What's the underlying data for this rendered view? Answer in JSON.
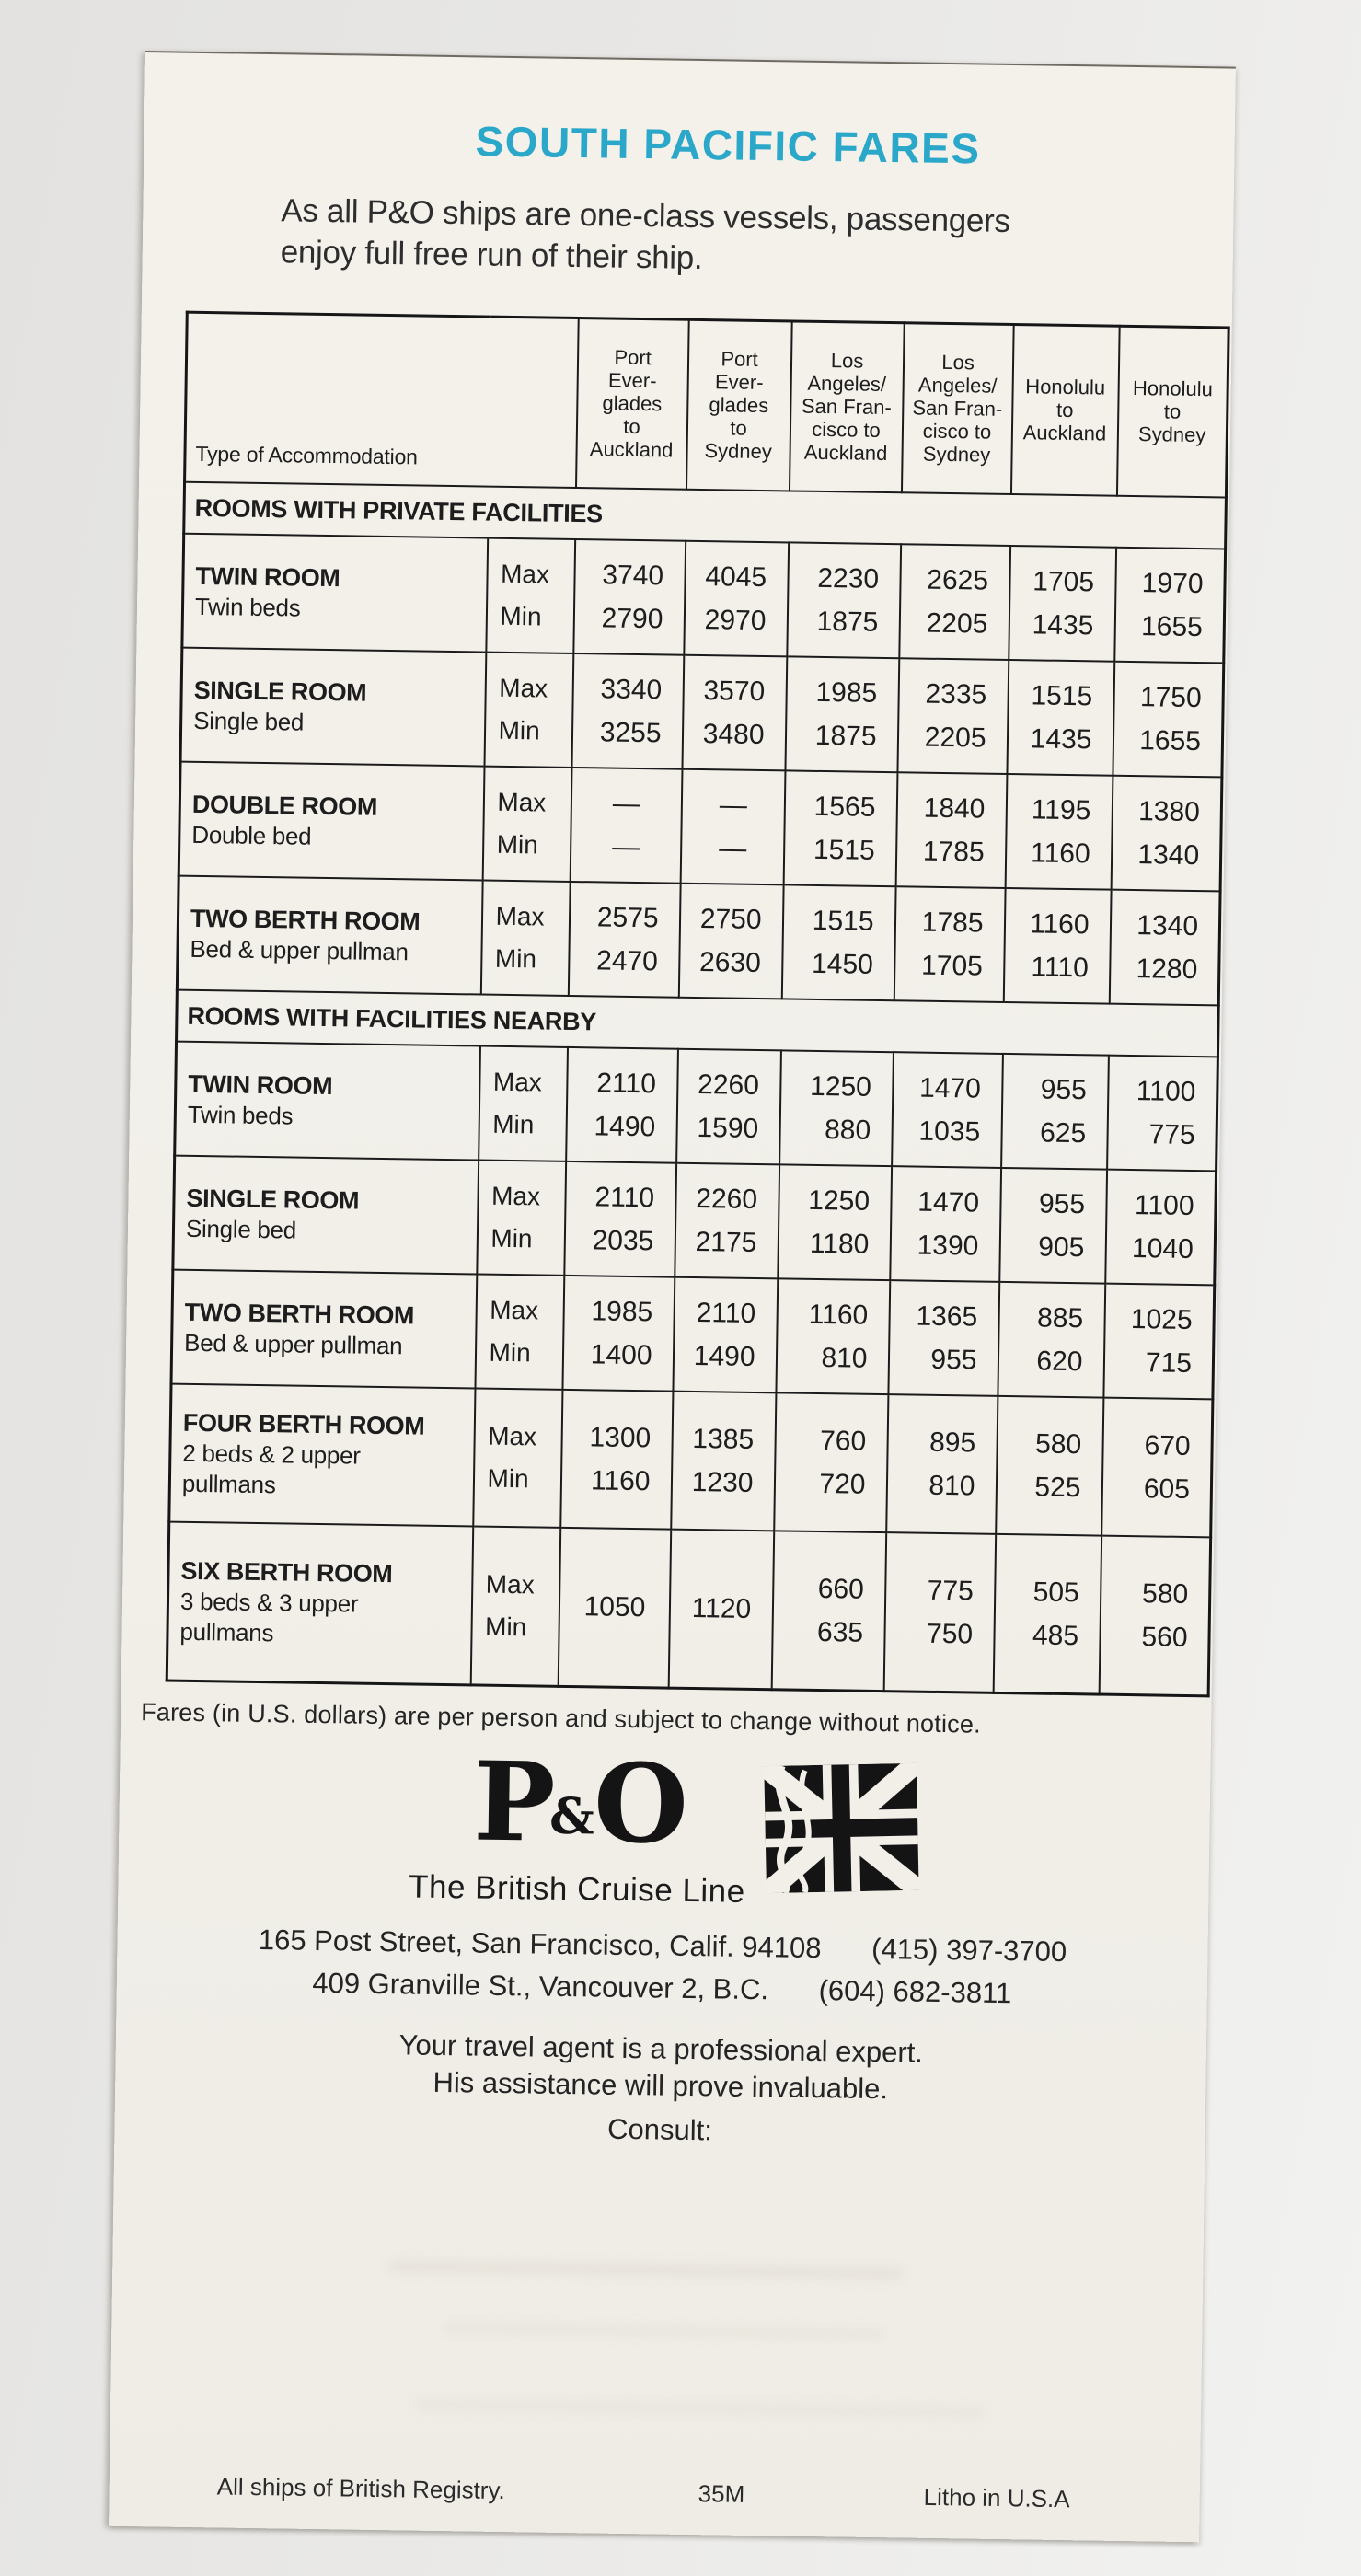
{
  "title": "SOUTH PACIFIC FARES",
  "intro": "As all P&O ships are one-class vessels, passengers\nenjoy full free run of their ship.",
  "table": {
    "col_header_label": "Type of Accommodation",
    "max_label": "Max",
    "min_label": "Min",
    "columns": [
      [
        "Port",
        "Ever-",
        "glades",
        "to",
        "Auckland"
      ],
      [
        "Port",
        "Ever-",
        "glades",
        "to",
        "Sydney"
      ],
      [
        "Los",
        "Angeles/",
        "San Fran-",
        "cisco to",
        "Auckland"
      ],
      [
        "Los",
        "Angeles/",
        "San Fran-",
        "cisco to",
        "Sydney"
      ],
      [
        "Honolulu",
        "to",
        "Auckland"
      ],
      [
        "Honolulu",
        "to",
        "Sydney"
      ]
    ],
    "sections": [
      {
        "heading": "ROOMS WITH PRIVATE FACILITIES",
        "rows": [
          {
            "name": "TWIN ROOM",
            "desc": [
              "Twin beds"
            ],
            "max": [
              "3740",
              "4045",
              "2230",
              "2625",
              "1705",
              "1970"
            ],
            "min": [
              "2790",
              "2970",
              "1875",
              "2205",
              "1435",
              "1655"
            ]
          },
          {
            "name": "SINGLE ROOM",
            "desc": [
              "Single bed"
            ],
            "max": [
              "3340",
              "3570",
              "1985",
              "2335",
              "1515",
              "1750"
            ],
            "min": [
              "3255",
              "3480",
              "1875",
              "2205",
              "1435",
              "1655"
            ]
          },
          {
            "name": "DOUBLE ROOM",
            "desc": [
              "Double bed"
            ],
            "max": [
              "—",
              "—",
              "1565",
              "1840",
              "1195",
              "1380"
            ],
            "min": [
              "—",
              "—",
              "1515",
              "1785",
              "1160",
              "1340"
            ]
          },
          {
            "name": "TWO BERTH ROOM",
            "desc": [
              "Bed & upper pullman"
            ],
            "max": [
              "2575",
              "2750",
              "1515",
              "1785",
              "1160",
              "1340"
            ],
            "min": [
              "2470",
              "2630",
              "1450",
              "1705",
              "1110",
              "1280"
            ]
          }
        ]
      },
      {
        "heading": "ROOMS WITH FACILITIES NEARBY",
        "rows": [
          {
            "name": "TWIN ROOM",
            "desc": [
              "Twin beds"
            ],
            "max": [
              "2110",
              "2260",
              "1250",
              "1470",
              "955",
              "1100"
            ],
            "min": [
              "1490",
              "1590",
              "880",
              "1035",
              "625",
              "775"
            ]
          },
          {
            "name": "SINGLE ROOM",
            "desc": [
              "Single bed"
            ],
            "max": [
              "2110",
              "2260",
              "1250",
              "1470",
              "955",
              "1100"
            ],
            "min": [
              "2035",
              "2175",
              "1180",
              "1390",
              "905",
              "1040"
            ]
          },
          {
            "name": "TWO BERTH ROOM",
            "desc": [
              "Bed & upper pullman"
            ],
            "max": [
              "1985",
              "2110",
              "1160",
              "1365",
              "885",
              "1025"
            ],
            "min": [
              "1400",
              "1490",
              "810",
              "955",
              "620",
              "715"
            ]
          },
          {
            "name": "FOUR BERTH ROOM",
            "desc": [
              "2 beds & 2 upper",
              "pullmans"
            ],
            "max": [
              "1300",
              "1385",
              "760",
              "895",
              "580",
              "670"
            ],
            "min": [
              "1160",
              "1230",
              "720",
              "810",
              "525",
              "605"
            ]
          },
          {
            "name": "SIX BERTH ROOM",
            "desc": [
              "3 beds & 3 upper",
              "pullmans"
            ],
            "max": [
              "1050",
              "1120",
              "660",
              "775",
              "505",
              "580"
            ],
            "min": [
              "",
              "",
              "635",
              "750",
              "485",
              "560"
            ],
            "merged": [
              true,
              true,
              false,
              false,
              false,
              false
            ]
          }
        ]
      }
    ]
  },
  "note": "Fares (in U.S. dollars) are per person and subject to change without notice.",
  "logo": {
    "brand": "P&O",
    "tagline": "The British Cruise Line",
    "flag_icon": "union-jack-flag"
  },
  "contact": [
    {
      "address": "165 Post Street, San Francisco, Calif. 94108",
      "phone": "(415) 397-3700"
    },
    {
      "address": "409 Granville St., Vancouver 2, B.C.",
      "phone": "(604) 682-3811"
    }
  ],
  "agent_note": "Your travel agent is a professional expert.\nHis assistance will prove invaluable.",
  "consult_label": "Consult:",
  "footer": {
    "left": "All ships of British Registry.",
    "center": "35M",
    "right": "Litho in U.S.A"
  },
  "colors": {
    "accent": "#2aa7c9",
    "paper": "#f2efe9",
    "ink": "#1d1d1d"
  }
}
